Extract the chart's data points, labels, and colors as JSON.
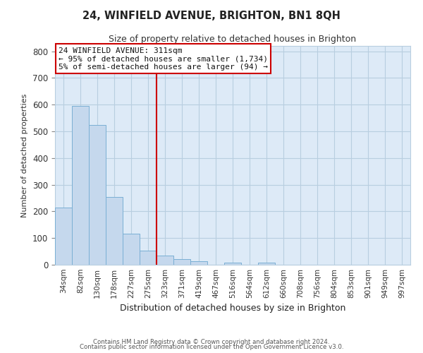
{
  "title": "24, WINFIELD AVENUE, BRIGHTON, BN1 8QH",
  "subtitle": "Size of property relative to detached houses in Brighton",
  "xlabel": "Distribution of detached houses by size in Brighton",
  "ylabel": "Number of detached properties",
  "bar_labels": [
    "34sqm",
    "82sqm",
    "130sqm",
    "178sqm",
    "227sqm",
    "275sqm",
    "323sqm",
    "371sqm",
    "419sqm",
    "467sqm",
    "516sqm",
    "564sqm",
    "612sqm",
    "660sqm",
    "708sqm",
    "756sqm",
    "804sqm",
    "853sqm",
    "901sqm",
    "949sqm",
    "997sqm"
  ],
  "bar_values": [
    215,
    595,
    525,
    255,
    117,
    52,
    35,
    20,
    13,
    0,
    8,
    0,
    7,
    0,
    0,
    0,
    0,
    0,
    0,
    0,
    0
  ],
  "bar_color": "#c5d8ed",
  "bar_edge_color": "#7aafd4",
  "vline_x": 5.5,
  "vline_color": "#cc0000",
  "ylim": [
    0,
    820
  ],
  "yticks": [
    0,
    100,
    200,
    300,
    400,
    500,
    600,
    700,
    800
  ],
  "annotation_title": "24 WINFIELD AVENUE: 311sqm",
  "annotation_line1": "← 95% of detached houses are smaller (1,734)",
  "annotation_line2": "5% of semi-detached houses are larger (94) →",
  "annotation_box_color": "#ffffff",
  "annotation_box_edge": "#cc0000",
  "footer1": "Contains HM Land Registry data © Crown copyright and database right 2024.",
  "footer2": "Contains public sector information licensed under the Open Government Licence v3.0.",
  "fig_facecolor": "#ffffff",
  "axes_facecolor": "#ddeaf7",
  "grid_color": "#b8cee0"
}
